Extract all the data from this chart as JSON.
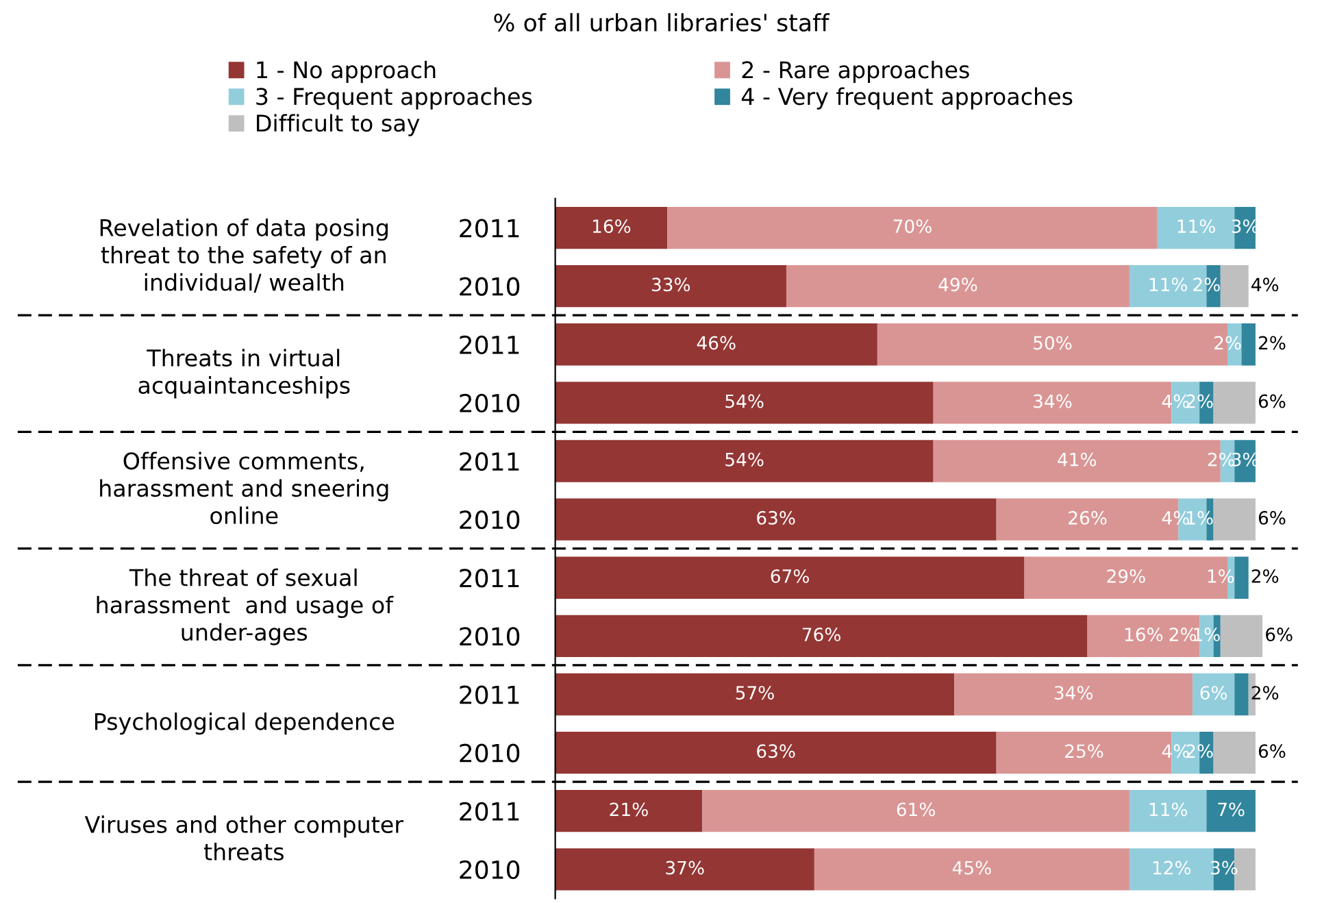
{
  "chart_data": {
    "type": "bar",
    "orientation": "horizontal",
    "stacked": true,
    "title": "% of all urban libraries' staff",
    "categories": [
      "2011",
      "2010",
      "2011",
      "2010",
      "2011",
      "2010",
      "2011",
      "2010",
      "2011",
      "2010",
      "2011",
      "2010"
    ],
    "annotations": [
      "Revelation of data posing\nthreat to the safety of an\nindividual/ wealth",
      "Threats in virtual\nacquaintanceships",
      "Offensive comments,\nharassment and sneering\nonline",
      "The threat of sexual\nharassment  and usage of\nunder-ages",
      "Psychological dependence",
      "Viruses and other computer\nthreats"
    ],
    "xlim": [
      0,
      101
    ],
    "tick_labels": "y",
    "legend": "top",
    "grid": false,
    "series": [
      {
        "name": "1 - No approach",
        "color": "#943634",
        "values": [
          16,
          33,
          46,
          54,
          54,
          63,
          67,
          76,
          57,
          63,
          21,
          37
        ],
        "value_labels": [
          "16%",
          "33%",
          "46%",
          "54%",
          "54%",
          "63%",
          "67%",
          "76%",
          "57%",
          "63%",
          "21%",
          "37%"
        ]
      },
      {
        "name": "2 - Rare approaches",
        "color": "#d99594",
        "values": [
          70,
          49,
          50,
          34,
          41,
          26,
          29,
          16,
          34,
          25,
          61,
          45
        ],
        "value_labels": [
          "70%",
          "49%",
          "50%",
          "34%",
          "41%",
          "26%",
          "29%",
          "16%",
          "34%",
          "25%",
          "61%",
          "45%"
        ]
      },
      {
        "name": "3 - Frequent approaches",
        "color": "#92cddc",
        "values": [
          11,
          11,
          2,
          4,
          2,
          4,
          1,
          2,
          6,
          4,
          11,
          12
        ],
        "value_labels": [
          "11%",
          "11%",
          "2%",
          "4%",
          "2%",
          "4%",
          "1%",
          "2%",
          "6%",
          "4%",
          "11%",
          "12%"
        ]
      },
      {
        "name": "4 - Very frequent approaches",
        "color": "#31859c",
        "values": [
          3,
          2,
          2,
          2,
          3,
          1,
          2,
          1,
          2,
          2,
          7,
          3
        ],
        "value_labels": [
          "3%",
          "2%",
          "2%",
          "2%",
          "3%",
          "1%",
          "2%",
          "1%",
          "2%",
          "2%",
          "7%",
          "3%"
        ]
      },
      {
        "name": "Difficult to say",
        "color": "#bfbfbf",
        "values": [
          null,
          4,
          null,
          6,
          null,
          6,
          null,
          6,
          1,
          6,
          null,
          3
        ],
        "value_labels": [
          null,
          "4%",
          null,
          "6%",
          null,
          "6%",
          null,
          "6%",
          null,
          "6%",
          null,
          null
        ]
      }
    ]
  }
}
